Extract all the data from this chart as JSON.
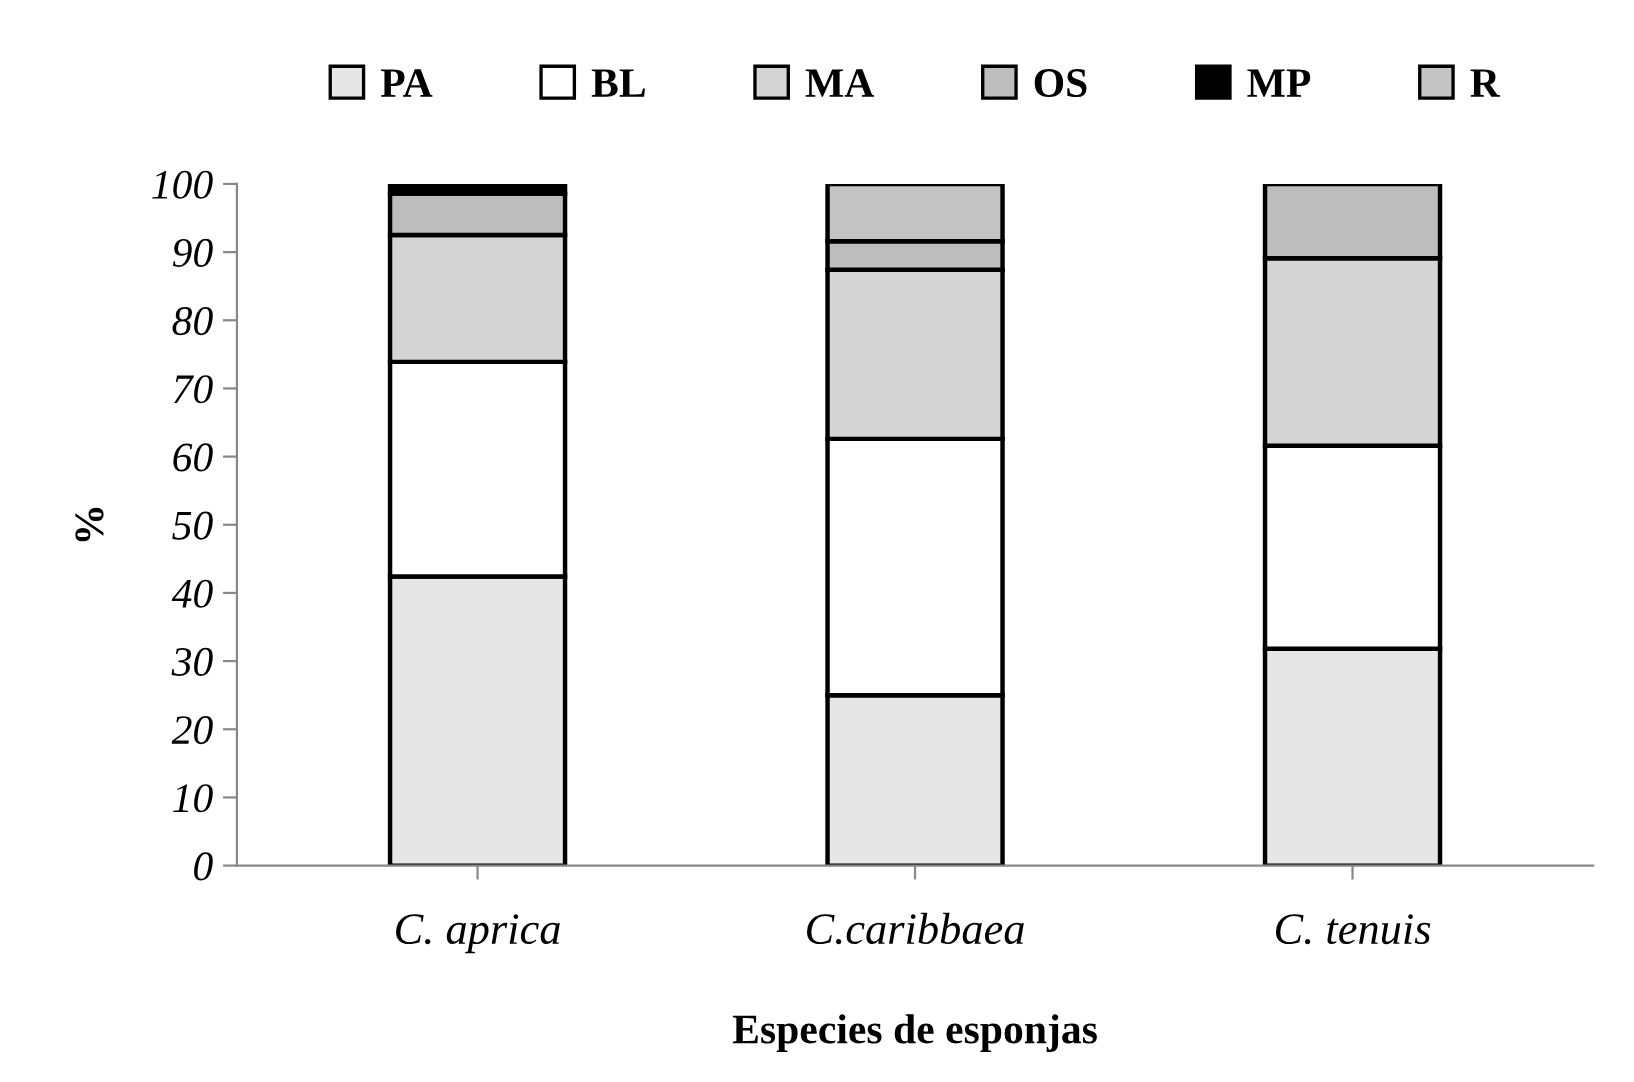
{
  "chart_data": {
    "type": "bar",
    "stacked": true,
    "xlabel": "Especies de esponjas",
    "ylabel": "%",
    "categories": [
      "C. aprica",
      "C.caribbaea",
      "C. tenuis"
    ],
    "series": [
      {
        "name": "PA",
        "color": "#e6e6e6",
        "values": [
          42.4,
          25,
          31.8
        ]
      },
      {
        "name": "BL",
        "color": "#ffffff",
        "values": [
          31.5,
          37.6,
          29.8
        ]
      },
      {
        "name": "MA",
        "color": "#d4d4d4",
        "values": [
          18.6,
          24.8,
          27.5
        ]
      },
      {
        "name": "OS",
        "color": "#bdbdbd",
        "values": [
          6.1,
          4.2,
          10.9
        ]
      },
      {
        "name": "MP",
        "color": "#000000",
        "values": [
          1.4,
          0,
          0
        ]
      },
      {
        "name": "R",
        "color": "#c4c4c4",
        "values": [
          0,
          8.4,
          0
        ]
      }
    ],
    "ylim": [
      0,
      100
    ],
    "yticks": [
      0,
      10,
      20,
      30,
      40,
      50,
      60,
      70,
      80,
      90,
      100
    ],
    "grid": false,
    "legend": "top"
  }
}
